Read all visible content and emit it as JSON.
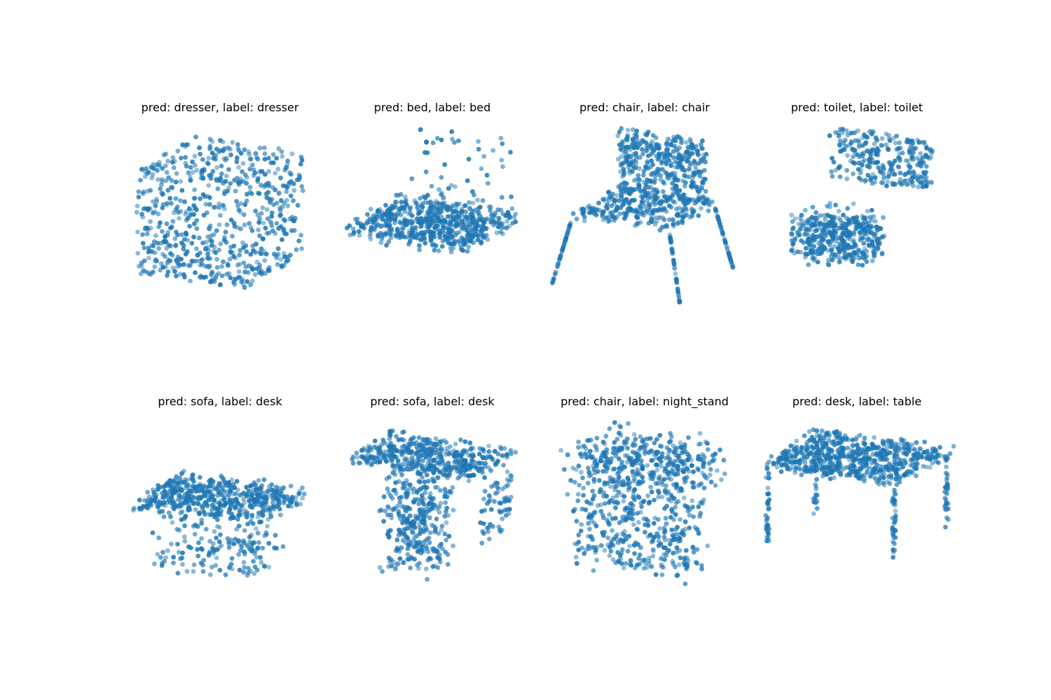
{
  "chart_data": [
    {
      "type": "scatter",
      "title": "pred: dresser, label: dresser",
      "shape": "box",
      "series": [
        {
          "color": "#1f77b4",
          "values": []
        }
      ]
    },
    {
      "type": "scatter",
      "title": "pred: bed, label: bed",
      "shape": "bed",
      "series": [
        {
          "color": "#1f77b4",
          "values": []
        }
      ]
    },
    {
      "type": "scatter",
      "title": "pred: chair, label: chair",
      "shape": "chair",
      "series": [
        {
          "color": "#1f77b4",
          "values": []
        }
      ]
    },
    {
      "type": "scatter",
      "title": "pred: toilet, label: toilet",
      "shape": "toilet",
      "series": [
        {
          "color": "#1f77b4",
          "values": []
        }
      ]
    },
    {
      "type": "scatter",
      "title": "pred: sofa, label: desk",
      "shape": "desk_low",
      "series": [
        {
          "color": "#1f77b4",
          "values": []
        }
      ]
    },
    {
      "type": "scatter",
      "title": "pred: sofa, label: desk",
      "shape": "desk_side",
      "series": [
        {
          "color": "#1f77b4",
          "values": []
        }
      ]
    },
    {
      "type": "scatter",
      "title": "pred: chair, label: night_stand",
      "shape": "nightstand",
      "series": [
        {
          "color": "#1f77b4",
          "values": []
        }
      ]
    },
    {
      "type": "scatter",
      "title": "pred: desk, label: table",
      "shape": "table",
      "series": [
        {
          "color": "#1f77b4",
          "values": []
        }
      ]
    }
  ]
}
